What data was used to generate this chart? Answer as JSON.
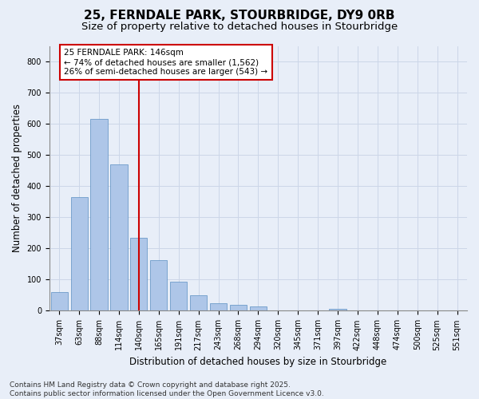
{
  "title1": "25, FERNDALE PARK, STOURBRIDGE, DY9 0RB",
  "title2": "Size of property relative to detached houses in Stourbridge",
  "xlabel": "Distribution of detached houses by size in Stourbridge",
  "ylabel": "Number of detached properties",
  "categories": [
    "37sqm",
    "63sqm",
    "88sqm",
    "114sqm",
    "140sqm",
    "165sqm",
    "191sqm",
    "217sqm",
    "243sqm",
    "268sqm",
    "294sqm",
    "320sqm",
    "345sqm",
    "371sqm",
    "397sqm",
    "422sqm",
    "448sqm",
    "474sqm",
    "500sqm",
    "525sqm",
    "551sqm"
  ],
  "values": [
    60,
    365,
    615,
    470,
    235,
    163,
    93,
    50,
    24,
    20,
    15,
    0,
    0,
    0,
    5,
    0,
    0,
    0,
    0,
    0,
    0
  ],
  "bar_color": "#aec6e8",
  "bar_edge_color": "#5a8fc2",
  "vline_index": 4,
  "vline_color": "#cc0000",
  "annotation_text": "25 FERNDALE PARK: 146sqm\n← 74% of detached houses are smaller (1,562)\n26% of semi-detached houses are larger (543) →",
  "annotation_box_facecolor": "#ffffff",
  "annotation_box_edgecolor": "#cc0000",
  "ylim": [
    0,
    850
  ],
  "yticks": [
    0,
    100,
    200,
    300,
    400,
    500,
    600,
    700,
    800
  ],
  "grid_color": "#ccd6e8",
  "background_color": "#e8eef8",
  "footnote": "Contains HM Land Registry data © Crown copyright and database right 2025.\nContains public sector information licensed under the Open Government Licence v3.0.",
  "title1_fontsize": 11,
  "title2_fontsize": 9.5,
  "xlabel_fontsize": 8.5,
  "ylabel_fontsize": 8.5,
  "tick_fontsize": 7,
  "annotation_fontsize": 7.5,
  "footnote_fontsize": 6.5
}
